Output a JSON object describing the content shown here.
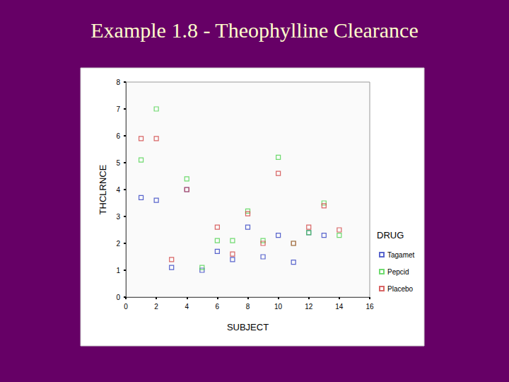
{
  "chart_data": {
    "type": "scatter",
    "title": "Example 1.8 - Theophylline Clearance",
    "x_label": "SUBJECT",
    "y_label": "THCLRNCE",
    "legend_title": "DRUG",
    "legend": "right",
    "marker": "square",
    "grid": false,
    "x": [
      1,
      2,
      3,
      4,
      5,
      6,
      7,
      8,
      9,
      10,
      11,
      12,
      13,
      14
    ],
    "series": [
      {
        "name": "Tagamet",
        "color": "#2f3fc0",
        "values": [
          3.7,
          3.6,
          1.1,
          4.0,
          1.0,
          1.7,
          1.4,
          2.6,
          1.5,
          2.3,
          1.3,
          2.4,
          2.3,
          null
        ]
      },
      {
        "name": "Pepcid",
        "color": "#4cd24c",
        "values": [
          5.1,
          7.0,
          null,
          4.4,
          1.1,
          2.1,
          2.1,
          3.2,
          2.1,
          5.2,
          2.0,
          2.4,
          3.5,
          2.3
        ]
      },
      {
        "name": "Placebo",
        "color": "#d04040",
        "values": [
          5.9,
          5.9,
          1.4,
          4.0,
          null,
          2.6,
          1.6,
          3.1,
          2.0,
          4.6,
          2.0,
          2.6,
          3.4,
          2.5
        ]
      }
    ],
    "xlim": [
      0,
      16
    ],
    "xticks": [
      0,
      2,
      4,
      6,
      8,
      10,
      12,
      14,
      16
    ],
    "ylim": [
      0,
      8
    ],
    "yticks": [
      0,
      1,
      2,
      3,
      4,
      5,
      6,
      7,
      8
    ]
  }
}
